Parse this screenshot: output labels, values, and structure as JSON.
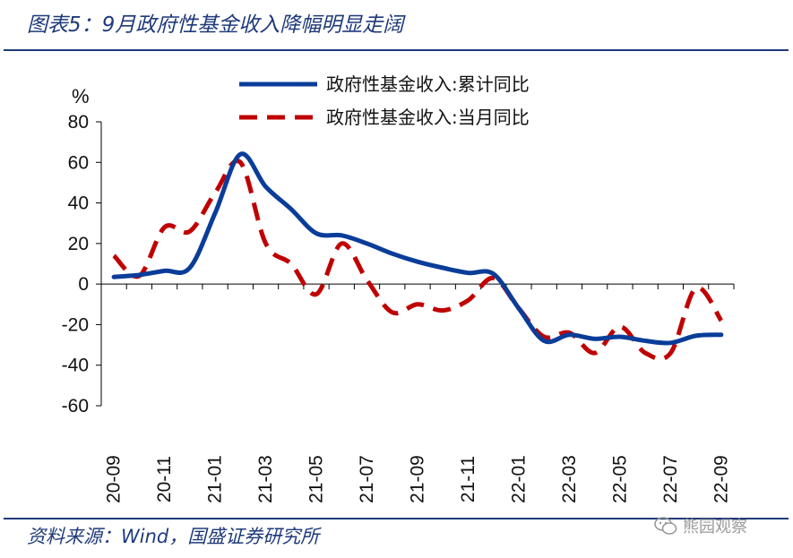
{
  "figure": {
    "title": "图表5：9月政府性基金收入降幅明显走阔",
    "source": "资料来源：Wind，国盛证券研究所",
    "watermark": "熊园观察"
  },
  "chart_data": {
    "type": "line",
    "title": "9月政府性基金收入降幅明显走阔",
    "ylabel": "%",
    "xlabel": "",
    "ylim": [
      -60,
      80
    ],
    "yticks": [
      80,
      60,
      40,
      20,
      0,
      -20,
      -40,
      -60
    ],
    "x": [
      "20-09",
      "20-10",
      "20-11",
      "20-12",
      "21-01",
      "21-02",
      "21-03",
      "21-04",
      "21-05",
      "21-06",
      "21-07",
      "21-08",
      "21-09",
      "21-10",
      "21-11",
      "21-12",
      "22-01",
      "22-02",
      "22-03",
      "22-04",
      "22-05",
      "22-06",
      "22-07",
      "22-08",
      "22-09"
    ],
    "xtick_labels": [
      "20-09",
      "20-11",
      "21-01",
      "21-03",
      "21-05",
      "21-07",
      "21-09",
      "21-11",
      "22-01",
      "22-03",
      "22-05",
      "22-07",
      "22-09"
    ],
    "legend_position": "top",
    "series": [
      {
        "name": "政府性基金收入:累计同比",
        "color": "#0a3d99",
        "style": "solid",
        "values": [
          3.5,
          4.5,
          6.5,
          8,
          35,
          64,
          48,
          37,
          25,
          24,
          20,
          15,
          11,
          8,
          5.5,
          5,
          -12,
          -28,
          -25,
          -27,
          -26,
          -28,
          -29,
          -25.5,
          -25
        ]
      },
      {
        "name": "政府性基金收入:当月同比",
        "color": "#c00000",
        "style": "dashed",
        "values": [
          14,
          4,
          28,
          26,
          45,
          60,
          20,
          10,
          -5,
          20,
          2,
          -14,
          -10,
          -13,
          -8,
          3,
          -12,
          -26,
          -24,
          -34,
          -21,
          -34,
          -34,
          -2,
          -18
        ]
      }
    ]
  }
}
